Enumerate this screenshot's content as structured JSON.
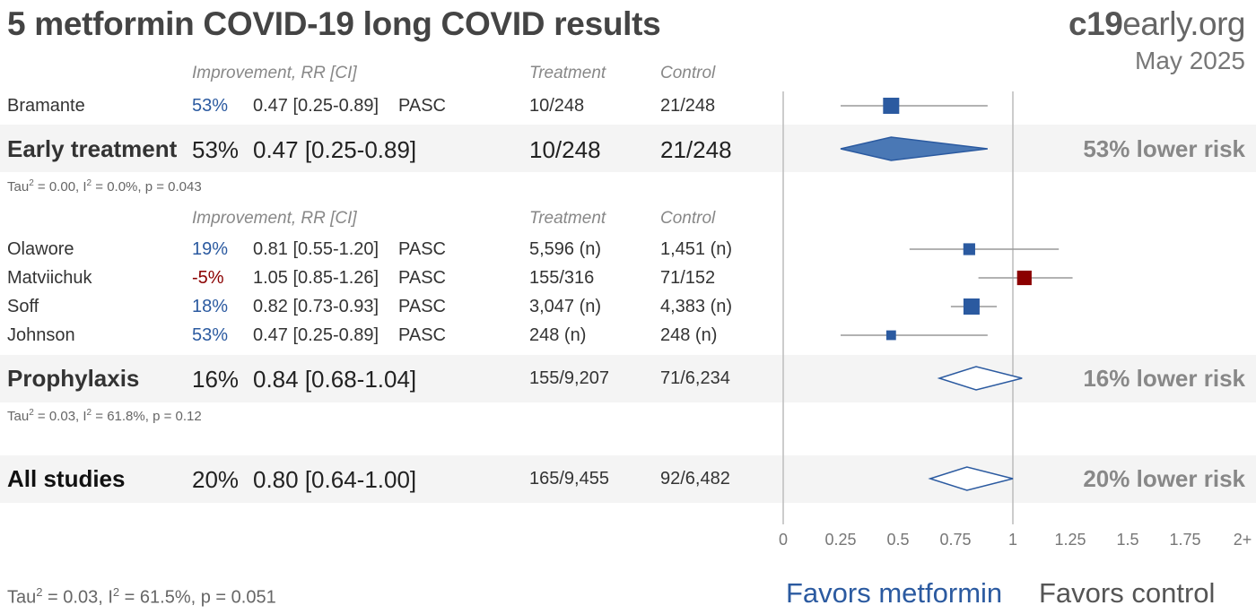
{
  "header": {
    "title": "5 metformin COVID-19 long COVID results",
    "brand_bold": "c19",
    "brand_rest": "early.org",
    "date": "May 2025"
  },
  "columns": {
    "improvement": "Improvement, RR [CI]",
    "treatment": "Treatment",
    "control": "Control"
  },
  "chart_data": {
    "type": "forest",
    "groups": [
      {
        "name": "Early treatment",
        "studies": [
          {
            "name": "Bramante",
            "improvement": "53%",
            "rr": 0.47,
            "lo": 0.25,
            "hi": 0.89,
            "rr_text": "0.47 [0.25-0.89]",
            "outcome": "PASC",
            "treatment": "10/248",
            "control": "21/248",
            "weight": 1.0
          }
        ],
        "summary": {
          "improvement": "53%",
          "rr": 0.47,
          "lo": 0.25,
          "hi": 0.89,
          "rr_text": "0.47 [0.25-0.89]",
          "treatment": "10/248",
          "control": "21/248",
          "risk_text": "53% lower risk",
          "filled": true
        },
        "stat_tau": "Tau",
        "stat_rest": " = 0.00, I",
        "stat_rest2": " = 0.0%, p = 0.043"
      },
      {
        "name": "Prophylaxis",
        "studies": [
          {
            "name": "Olawore",
            "improvement": "19%",
            "rr": 0.81,
            "lo": 0.55,
            "hi": 1.2,
            "rr_text": "0.81 [0.55-1.20]",
            "outcome": "PASC",
            "treatment": "5,596 (n)",
            "control": "1,451 (n)",
            "weight": 0.6
          },
          {
            "name": "Matviichuk",
            "improvement": "-5%",
            "rr": 1.05,
            "lo": 0.85,
            "hi": 1.26,
            "rr_text": "1.05 [0.85-1.26]",
            "outcome": "PASC",
            "treatment": "155/316",
            "control": "71/152",
            "weight": 0.85,
            "unfavorable": true
          },
          {
            "name": "Soff",
            "improvement": "18%",
            "rr": 0.82,
            "lo": 0.73,
            "hi": 0.93,
            "rr_text": "0.82 [0.73-0.93]",
            "outcome": "PASC",
            "treatment": "3,047 (n)",
            "control": "4,383 (n)",
            "weight": 1.0
          },
          {
            "name": "Johnson",
            "improvement": "53%",
            "rr": 0.47,
            "lo": 0.25,
            "hi": 0.89,
            "rr_text": "0.47 [0.25-0.89]",
            "outcome": "PASC",
            "treatment": "248 (n)",
            "control": "248 (n)",
            "weight": 0.4
          }
        ],
        "summary": {
          "improvement": "16%",
          "rr": 0.84,
          "lo": 0.68,
          "hi": 1.04,
          "rr_text": "0.84 [0.68-1.04]",
          "treatment": "155/9,207",
          "control": "71/6,234",
          "risk_text": "16% lower risk",
          "filled": false
        },
        "stat_tau": "Tau",
        "stat_rest": " = 0.03, I",
        "stat_rest2": " = 61.8%, p = 0.12"
      }
    ],
    "overall": {
      "name": "All studies",
      "improvement": "20%",
      "rr": 0.8,
      "lo": 0.64,
      "hi": 1.0,
      "rr_text": "0.80 [0.64-1.00]",
      "treatment": "165/9,455",
      "control": "92/6,482",
      "risk_text": "20% lower risk",
      "filled": false
    },
    "overall_stat": {
      "tau": "Tau",
      "rest": " = 0.03, I",
      "rest2": " = 61.5%, p = 0.051"
    },
    "x_ticks": [
      "0",
      "0.25",
      "0.5",
      "0.75",
      "1",
      "1.25",
      "1.5",
      "1.75",
      "2+"
    ],
    "xlim": [
      0,
      2
    ],
    "reference_line": 1,
    "favors_left": "Favors metformin",
    "favors_right": "Favors control",
    "colors": {
      "favorable": "#2b5aa0",
      "unfavorable": "#8b0000",
      "ci_line": "#999999"
    }
  }
}
